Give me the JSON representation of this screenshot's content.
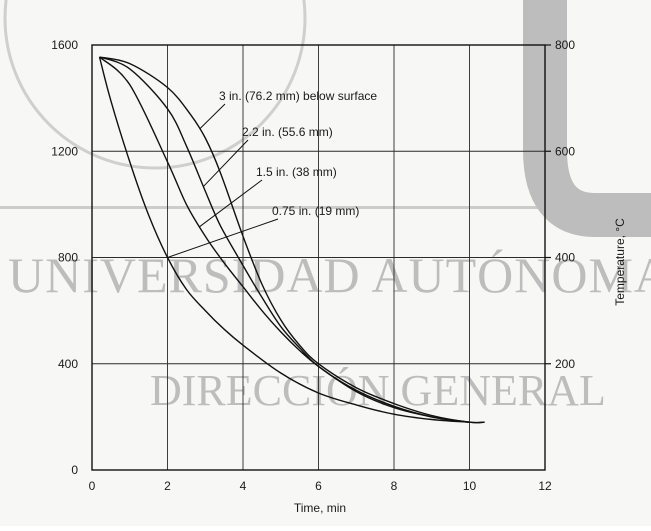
{
  "chart_data": {
    "type": "line",
    "xlabel": "Time, min",
    "ylabel_right": "Temperature, °C",
    "xlim": [
      0,
      12
    ],
    "ylim": [
      0,
      1600
    ],
    "ylim_right": [
      0,
      800
    ],
    "x_ticks": [
      "0",
      "2",
      "4",
      "6",
      "8",
      "10",
      "12"
    ],
    "y_ticks": [
      "0",
      "400",
      "800",
      "1200",
      "1600"
    ],
    "y_ticks_right": [
      "200",
      "400",
      "600",
      "800"
    ],
    "grid": true,
    "series": [
      {
        "name": "3 in. (76.2 mm) below surface",
        "x": [
          0.2,
          1,
          2,
          2.6,
          3,
          3.4,
          4,
          4.5,
          5,
          5.5,
          6,
          7,
          8,
          9,
          10,
          10.4
        ],
        "y": [
          1555,
          1530,
          1440,
          1340,
          1250,
          1120,
          880,
          700,
          565,
          470,
          400,
          310,
          250,
          205,
          180,
          180
        ]
      },
      {
        "name": "2.2 in. (55.6 mm)",
        "x": [
          0.2,
          1,
          2,
          2.5,
          3,
          3.4,
          4,
          4.5,
          5,
          5.5,
          6,
          7,
          8,
          9,
          10,
          10.4
        ],
        "y": [
          1555,
          1510,
          1360,
          1220,
          1050,
          920,
          770,
          650,
          540,
          460,
          390,
          300,
          240,
          200,
          180,
          180
        ]
      },
      {
        "name": "1.5 in. (38 mm)",
        "x": [
          0.2,
          1,
          2,
          2.5,
          3,
          3.5,
          4,
          4.5,
          5,
          5.5,
          6,
          7,
          8,
          9,
          10
        ],
        "y": [
          1555,
          1450,
          1160,
          1000,
          880,
          780,
          690,
          600,
          520,
          450,
          390,
          295,
          235,
          200,
          180
        ]
      },
      {
        "name": "0.75 in. (19 mm)",
        "x": [
          0.2,
          0.5,
          1,
          1.5,
          2,
          2.5,
          3,
          3.5,
          4,
          5,
          6,
          7,
          8,
          9,
          10
        ],
        "y": [
          1555,
          1390,
          1160,
          960,
          800,
          680,
          600,
          530,
          470,
          365,
          290,
          245,
          210,
          190,
          180
        ]
      }
    ],
    "annotations": [
      {
        "text": "3 in. (76.2 mm) below surface",
        "target_series": 0
      },
      {
        "text": "2.2 in. (55.6 mm)",
        "target_series": 1
      },
      {
        "text": "1.5 in. (38 mm)",
        "target_series": 2
      },
      {
        "text": "0.75 in. (19 mm)",
        "target_series": 3
      }
    ],
    "watermark": [
      "UNIVERSIDAD AUTÓNOMA",
      "DIRECCIÓN GENERAL"
    ]
  }
}
